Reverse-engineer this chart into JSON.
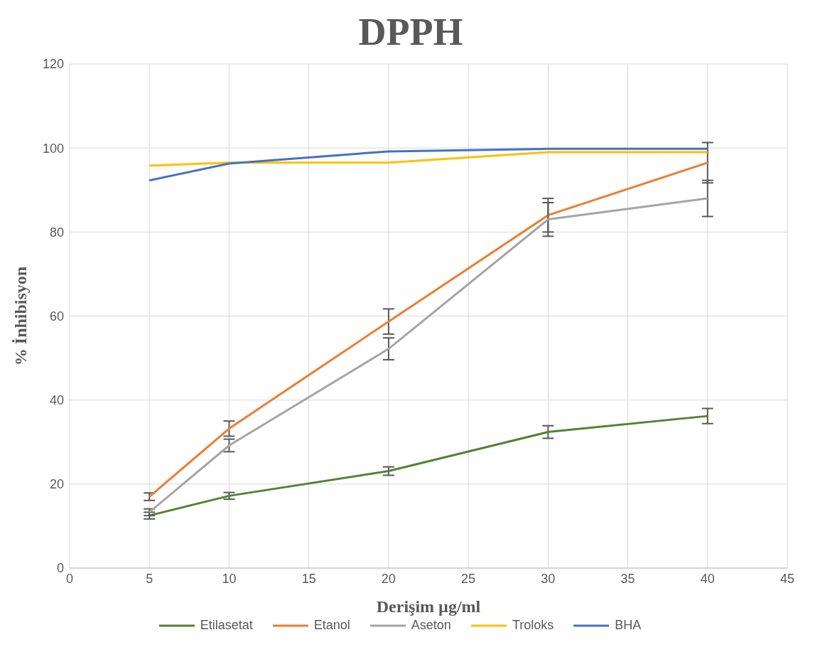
{
  "chart_data": {
    "type": "line",
    "title": "DPPH",
    "xlabel": "Derişim µg/ml",
    "ylabel": "% İnhibisyon",
    "x": [
      5,
      10,
      20,
      30,
      40
    ],
    "series": [
      {
        "name": "Etilasetat",
        "color": "#548235",
        "values": [
          12.5,
          17.2,
          23.1,
          32.4,
          36.2
        ],
        "errors": [
          0.8,
          0.8,
          1.0,
          1.5,
          1.8
        ]
      },
      {
        "name": "Etanol",
        "color": "#ed7d31",
        "values": [
          17,
          33.2,
          58.7,
          84,
          96.5
        ],
        "errors": [
          0.9,
          1.8,
          3,
          4,
          4.8
        ]
      },
      {
        "name": "Aseton",
        "color": "#a5a5a5",
        "values": [
          13.3,
          29.2,
          52.2,
          83,
          88
        ],
        "errors": [
          0.8,
          1.5,
          2.6,
          4,
          4.3
        ]
      },
      {
        "name": "Troloks",
        "color": "#ffc000",
        "values": [
          95.8,
          96.5,
          96.5,
          99,
          99
        ]
      },
      {
        "name": "BHA",
        "color": "#4472c4",
        "values": [
          92.3,
          96.3,
          99.2,
          99.8,
          99.8
        ]
      }
    ],
    "xlim": [
      0,
      45
    ],
    "xticks": [
      0,
      5,
      10,
      15,
      20,
      25,
      30,
      35,
      40,
      45
    ],
    "ylim": [
      0,
      120
    ],
    "yticks": [
      0,
      20,
      40,
      60,
      80,
      100,
      120
    ],
    "grid": true,
    "legend": "bottom",
    "marker": "none",
    "line_style": "solid"
  }
}
